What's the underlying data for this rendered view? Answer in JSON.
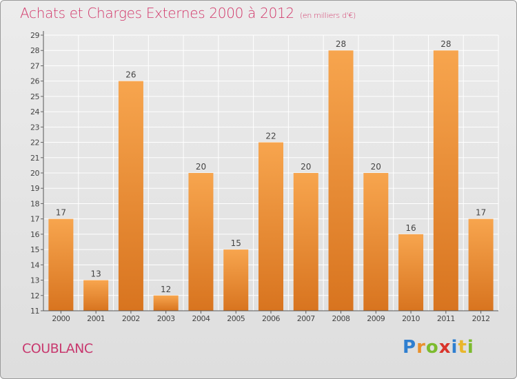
{
  "header": {
    "title": "Achats et Charges Externes 2000 à 2012",
    "subtitle": "(en milliers d'€)"
  },
  "footer": {
    "place": "COUBLANC",
    "logo_text": "Proxiti"
  },
  "colors": {
    "bar_light": "#f7a54e",
    "bar_dark": "#d8741f",
    "title": "#d2386a",
    "grid": "#ffffff",
    "axis": "#555555"
  },
  "chart_data": {
    "type": "bar",
    "title": "Achats et Charges Externes 2000 à 2012",
    "subtitle": "(en milliers d'€)",
    "categories": [
      "2000",
      "2001",
      "2002",
      "2003",
      "2004",
      "2005",
      "2006",
      "2007",
      "2008",
      "2009",
      "2010",
      "2011",
      "2012"
    ],
    "values": [
      17,
      13,
      26,
      12,
      20,
      15,
      22,
      20,
      28,
      20,
      16,
      28,
      17
    ],
    "ylim": [
      11,
      29
    ],
    "yticks": [
      11,
      12,
      13,
      14,
      15,
      16,
      17,
      18,
      19,
      20,
      21,
      22,
      23,
      24,
      25,
      26,
      27,
      28,
      29
    ],
    "grid": true,
    "show_data_labels": true
  }
}
